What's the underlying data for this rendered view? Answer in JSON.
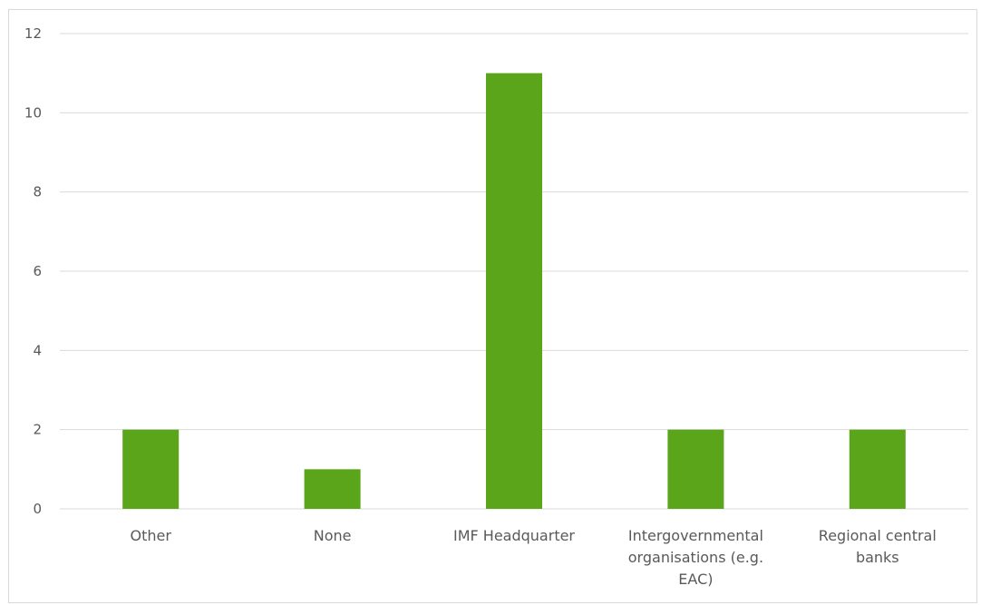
{
  "chart_data": {
    "type": "bar",
    "categories": [
      [
        "Other"
      ],
      [
        "None"
      ],
      [
        "IMF Headquarter"
      ],
      [
        "Intergovernmental",
        "organisations (e.g.",
        "EAC)"
      ],
      [
        "Regional central",
        "banks"
      ]
    ],
    "values": [
      2,
      1,
      11,
      2,
      2
    ],
    "ylim": [
      0,
      12
    ],
    "yticks": [
      0,
      2,
      4,
      6,
      8,
      10,
      12
    ],
    "grid": true,
    "title": "",
    "xlabel": "",
    "ylabel": "",
    "bar_color": "#5aa51a"
  }
}
